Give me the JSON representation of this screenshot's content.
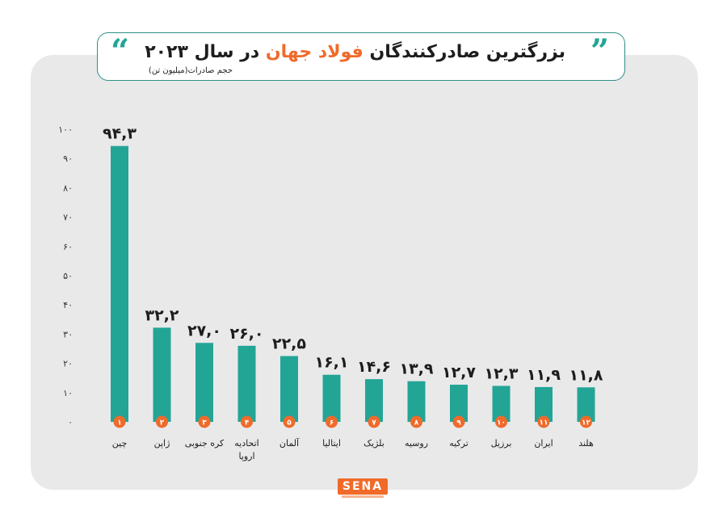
{
  "header": {
    "title_part1": "بزرگترین صادرکنندگان ",
    "title_highlight": "فولاد جهان",
    "title_part2": " در سال ۲۰۲۳",
    "subtitle": "حجم صادرات(میلیون تن)"
  },
  "logo": {
    "text": "SENA"
  },
  "colors": {
    "bar": "#23a596",
    "badge": "#f06a2a",
    "highlight": "#f06a2a",
    "panel": "#e9e9ea"
  },
  "chart_data": {
    "type": "bar",
    "title": "بزرگترین صادرکنندگان فولاد جهان در سال ۲۰۲۳",
    "ylabel": "حجم صادرات(میلیون تن)",
    "ylim": [
      0,
      100
    ],
    "yticks": [
      "۰",
      "۱۰",
      "۲۰",
      "۳۰",
      "۴۰",
      "۵۰",
      "۶۰",
      "۷۰",
      "۸۰",
      "۹۰",
      "۱۰۰"
    ],
    "categories": [
      [
        "چین"
      ],
      [
        "ژاپن"
      ],
      [
        "کره جنوبی"
      ],
      [
        "اتحادیه",
        "اروپا"
      ],
      [
        "آلمان"
      ],
      [
        "ایتالیا"
      ],
      [
        "بلژیک"
      ],
      [
        "روسیه"
      ],
      [
        "ترکیه"
      ],
      [
        "برزیل"
      ],
      [
        "ایران"
      ],
      [
        "هلند"
      ]
    ],
    "ranks": [
      "۱",
      "۲",
      "۳",
      "۴",
      "۵",
      "۶",
      "۷",
      "۸",
      "۹",
      "۱۰",
      "۱۱",
      "۱۲"
    ],
    "values": [
      94.3,
      32.2,
      27.0,
      26.0,
      22.5,
      16.1,
      14.6,
      13.9,
      12.7,
      12.3,
      11.9,
      11.8
    ],
    "value_labels": [
      "۹۴,۳",
      "۳۲,۲",
      "۲۷,۰",
      "۲۶,۰",
      "۲۲,۵",
      "۱۶,۱",
      "۱۴,۶",
      "۱۳,۹",
      "۱۲,۷",
      "۱۲,۳",
      "۱۱,۹",
      "۱۱,۸"
    ],
    "grid": false,
    "legend": "none"
  }
}
